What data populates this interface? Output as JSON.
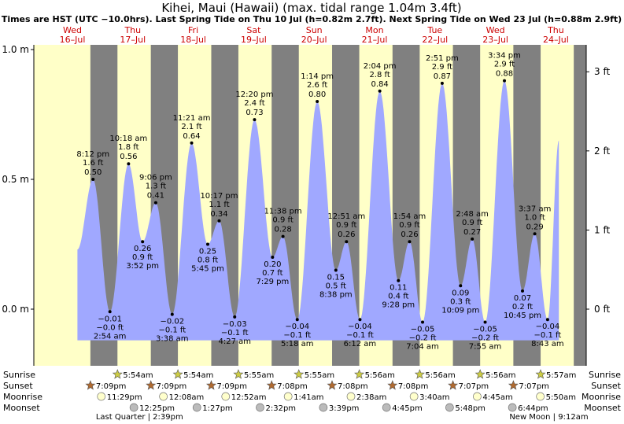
{
  "chart_data": {
    "type": "area",
    "title": "Kihei, Maui (Hawaii) (max. tidal range 1.04m 3.4ft)",
    "subtitle": "Times are HST (UTC −10.0hrs). Last Spring Tide on Thu 10 Jul (h=0.82m 2.7ft). Next Spring Tide on Wed 23 Jul (h=0.88m 2.9ft)",
    "days": [
      {
        "dow": "Wed",
        "date": "16–Jul"
      },
      {
        "dow": "Thu",
        "date": "17–Jul"
      },
      {
        "dow": "Fri",
        "date": "18–Jul"
      },
      {
        "dow": "Sat",
        "date": "19–Jul"
      },
      {
        "dow": "Sun",
        "date": "20–Jul"
      },
      {
        "dow": "Mon",
        "date": "21–Jul"
      },
      {
        "dow": "Tue",
        "date": "22–Jul"
      },
      {
        "dow": "Wed",
        "date": "23–Jul"
      },
      {
        "dow": "Thu",
        "date": "24–Jul"
      }
    ],
    "y_left": {
      "ticks": [
        {
          "v": 0.0,
          "label": "0.0 m"
        },
        {
          "v": 0.5,
          "label": "0.5 m"
        },
        {
          "v": 1.0,
          "label": "1.0 m"
        }
      ],
      "ylim": [
        -0.2,
        1.0
      ]
    },
    "y_right": {
      "ticks": [
        {
          "v": 0.0,
          "label": "0 ft"
        },
        {
          "v": 0.3048,
          "label": "1 ft"
        },
        {
          "v": 0.6096,
          "label": "2 ft"
        },
        {
          "v": 0.9144,
          "label": "3 ft"
        }
      ]
    },
    "extremes": [
      {
        "t": 20.2,
        "h": 0.5,
        "time": "8:12 pm",
        "ft": "1.6 ft",
        "m": "0.50 m",
        "high": true
      },
      {
        "t": 26.9,
        "h": -0.01,
        "time": "2:54 am",
        "ft": "−0.0 ft",
        "m": "−0.01 m",
        "high": false
      },
      {
        "t": 34.3,
        "h": 0.56,
        "time": "10:18 am",
        "ft": "1.8 ft",
        "m": "0.56 m",
        "high": true
      },
      {
        "t": 39.87,
        "h": 0.26,
        "time": "3:52 pm",
        "ft": "0.9 ft",
        "m": "0.26 m",
        "high": false
      },
      {
        "t": 45.1,
        "h": 0.41,
        "time": "9:06 pm",
        "ft": "1.3 ft",
        "m": "0.41 m",
        "high": true
      },
      {
        "t": 51.63,
        "h": -0.02,
        "time": "3:38 am",
        "ft": "−0.1 ft",
        "m": "−0.02 m",
        "high": false
      },
      {
        "t": 59.35,
        "h": 0.64,
        "time": "11:21 am",
        "ft": "2.1 ft",
        "m": "0.64 m",
        "high": true
      },
      {
        "t": 65.75,
        "h": 0.25,
        "time": "5:45 pm",
        "ft": "0.8 ft",
        "m": "0.25 m",
        "high": false
      },
      {
        "t": 70.28,
        "h": 0.34,
        "time": "10:17 pm",
        "ft": "1.1 ft",
        "m": "0.34 m",
        "high": true
      },
      {
        "t": 76.45,
        "h": -0.03,
        "time": "4:27 am",
        "ft": "−0.1 ft",
        "m": "−0.03 m",
        "high": false
      },
      {
        "t": 84.33,
        "h": 0.73,
        "time": "12:20 pm",
        "ft": "2.4 ft",
        "m": "0.73 m",
        "high": true
      },
      {
        "t": 91.48,
        "h": 0.2,
        "time": "7:29 pm",
        "ft": "0.7 ft",
        "m": "0.20 m",
        "high": false
      },
      {
        "t": 95.63,
        "h": 0.28,
        "time": "11:38 pm",
        "ft": "0.9 ft",
        "m": "0.28 m",
        "high": true
      },
      {
        "t": 101.3,
        "h": -0.04,
        "time": "5:18 am",
        "ft": "−0.1 ft",
        "m": "−0.04 m",
        "high": false
      },
      {
        "t": 109.23,
        "h": 0.8,
        "time": "1:14 pm",
        "ft": "2.6 ft",
        "m": "0.80 m",
        "high": true
      },
      {
        "t": 116.63,
        "h": 0.15,
        "time": "8:38 pm",
        "ft": "0.5 ft",
        "m": "0.15 m",
        "high": false
      },
      {
        "t": 120.85,
        "h": 0.26,
        "time": "12:51 am",
        "ft": "0.9 ft",
        "m": "0.26 m",
        "high": true
      },
      {
        "t": 126.2,
        "h": -0.04,
        "time": "6:12 am",
        "ft": "−0.1 ft",
        "m": "−0.04 m",
        "high": false
      },
      {
        "t": 134.07,
        "h": 0.84,
        "time": "2:04 pm",
        "ft": "2.8 ft",
        "m": "0.84 m",
        "high": true
      },
      {
        "t": 141.47,
        "h": 0.11,
        "time": "9:28 pm",
        "ft": "0.4 ft",
        "m": "0.11 m",
        "high": false
      },
      {
        "t": 145.9,
        "h": 0.26,
        "time": "1:54 am",
        "ft": "0.9 ft",
        "m": "0.26 m",
        "high": true
      },
      {
        "t": 151.07,
        "h": -0.05,
        "time": "7:04 am",
        "ft": "−0.2 ft",
        "m": "−0.05 m",
        "high": false
      },
      {
        "t": 158.85,
        "h": 0.87,
        "time": "2:51 pm",
        "ft": "2.9 ft",
        "m": "0.87 m",
        "high": true
      },
      {
        "t": 166.15,
        "h": 0.09,
        "time": "10:09 pm",
        "ft": "0.3 ft",
        "m": "0.09 m",
        "high": false
      },
      {
        "t": 170.8,
        "h": 0.27,
        "time": "2:48 am",
        "ft": "0.9 ft",
        "m": "0.27 m",
        "high": true
      },
      {
        "t": 175.92,
        "h": -0.05,
        "time": "7:55 am",
        "ft": "−0.2 ft",
        "m": "−0.05 m",
        "high": false
      },
      {
        "t": 183.57,
        "h": 0.88,
        "time": "3:34 pm",
        "ft": "2.9 ft",
        "m": "0.88 m",
        "high": true
      },
      {
        "t": 190.75,
        "h": 0.07,
        "time": "10:45 pm",
        "ft": "0.2 ft",
        "m": "0.07 m",
        "high": false
      },
      {
        "t": 195.62,
        "h": 0.29,
        "time": "3:37 am",
        "ft": "1.0 ft",
        "m": "0.29 m",
        "high": true
      },
      {
        "t": 200.72,
        "h": -0.04,
        "time": "8:43 am",
        "ft": "−0.1 ft",
        "m": "−0.04 m",
        "high": false
      }
    ],
    "curve_start": {
      "t": 14.0,
      "h": 0.23
    },
    "curve_end": {
      "t": 205.2,
      "h": 0.65
    },
    "sunrise": [
      {
        "t": 29.9,
        "label": "5:54am"
      },
      {
        "t": 53.9,
        "label": "5:54am"
      },
      {
        "t": 77.92,
        "label": "5:55am"
      },
      {
        "t": 101.92,
        "label": "5:55am"
      },
      {
        "t": 125.93,
        "label": "5:56am"
      },
      {
        "t": 149.93,
        "label": "5:56am"
      },
      {
        "t": 173.93,
        "label": "5:56am"
      },
      {
        "t": 197.95,
        "label": "5:57am"
      }
    ],
    "sunset": [
      {
        "t": 19.15,
        "label": "7:09pm"
      },
      {
        "t": 43.15,
        "label": "7:09pm"
      },
      {
        "t": 67.15,
        "label": "7:09pm"
      },
      {
        "t": 91.13,
        "label": "7:08pm"
      },
      {
        "t": 115.13,
        "label": "7:08pm"
      },
      {
        "t": 139.13,
        "label": "7:08pm"
      },
      {
        "t": 163.12,
        "label": "7:07pm"
      },
      {
        "t": 187.12,
        "label": "7:07pm"
      }
    ],
    "moonrise": [
      {
        "t": 23.48,
        "label": "11:29pm"
      },
      {
        "t": 48.13,
        "label": "12:08am"
      },
      {
        "t": 72.87,
        "label": "12:52am"
      },
      {
        "t": 97.68,
        "label": "1:41am"
      },
      {
        "t": 122.63,
        "label": "2:38am"
      },
      {
        "t": 147.67,
        "label": "3:40am"
      },
      {
        "t": 172.75,
        "label": "4:45am"
      },
      {
        "t": 197.83,
        "label": "5:50am"
      }
    ],
    "moonset": [
      {
        "t": 36.42,
        "label": "12:25pm"
      },
      {
        "t": 61.45,
        "label": "1:27pm"
      },
      {
        "t": 86.53,
        "label": "2:32pm"
      },
      {
        "t": 111.65,
        "label": "3:39pm"
      },
      {
        "t": 136.75,
        "label": "4:45pm"
      },
      {
        "t": 161.8,
        "label": "5:48pm"
      },
      {
        "t": 186.73,
        "label": "6:44pm"
      }
    ],
    "moon_phases": [
      {
        "t": 38.65,
        "label": "Last Quarter | 2:39pm"
      },
      {
        "t": 201.2,
        "label": "New Moon | 9:12am"
      }
    ],
    "row_labels": {
      "sunrise": "Sunrise",
      "sunset": "Sunset",
      "moonrise": "Moonrise",
      "moonset": "Moonset"
    },
    "colors": {
      "day": "#ffffc8",
      "night": "#808080",
      "tide": "#a0a8ff",
      "day_label": "#cc0000",
      "star_fill": "#cccc44",
      "sunset_fill": "#b06a30",
      "moonrise_fill": "#ffffcc",
      "moonset_fill": "#bbbbbb"
    }
  }
}
